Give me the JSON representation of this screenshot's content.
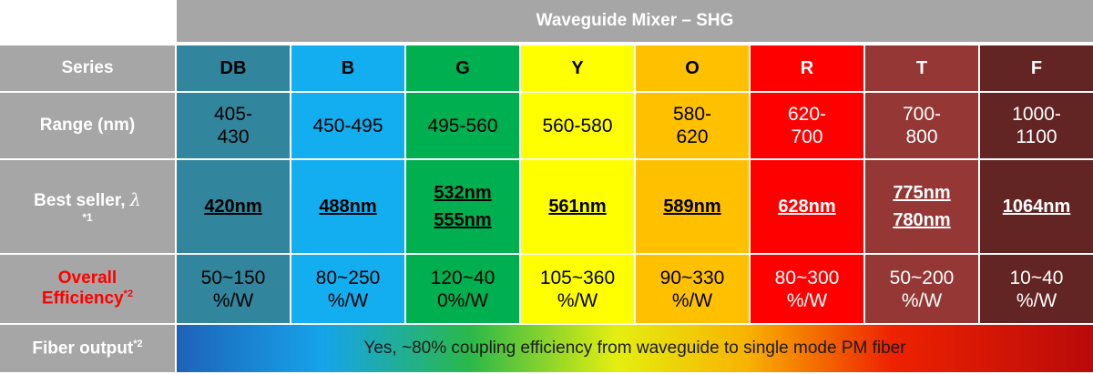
{
  "title": "Waveguide Mixer – SHG",
  "labels": {
    "series": "Series",
    "range": "Range (nm)",
    "best_seller": "Best seller,",
    "best_seller_symbol": "λ",
    "best_seller_note": "*1",
    "efficiency_line1": "Overall",
    "efficiency_line2": "Efficiency",
    "efficiency_note": "*2",
    "fiber": "Fiber output",
    "fiber_note": "*2"
  },
  "columns": [
    {
      "series": "DB",
      "range": [
        "405-",
        "430"
      ],
      "best": [
        "420nm"
      ],
      "eff": [
        "50~150",
        "%/W"
      ],
      "bg": "#31859c",
      "fg": "#000000"
    },
    {
      "series": "B",
      "range": [
        "450-495"
      ],
      "best": [
        "488nm"
      ],
      "eff": [
        "80~250",
        "%/W"
      ],
      "bg": "#13aef0",
      "fg": "#000000"
    },
    {
      "series": "G",
      "range": [
        "495-560"
      ],
      "best": [
        "532nm",
        "555nm"
      ],
      "eff": [
        "120~40",
        "0%/W"
      ],
      "bg": "#00b050",
      "fg": "#000000"
    },
    {
      "series": "Y",
      "range": [
        "560-580"
      ],
      "best": [
        "561nm"
      ],
      "eff": [
        "105~360",
        "%/W"
      ],
      "bg": "#ffff00",
      "fg": "#000000"
    },
    {
      "series": "O",
      "range": [
        "580-",
        "620"
      ],
      "best": [
        "589nm"
      ],
      "eff": [
        "90~330",
        "%/W"
      ],
      "bg": "#ffc000",
      "fg": "#000000"
    },
    {
      "series": "R",
      "range": [
        "620-",
        "700"
      ],
      "best": [
        "628nm"
      ],
      "eff": [
        "80~300",
        "%/W"
      ],
      "bg": "#ff0000",
      "fg": "#ffffff"
    },
    {
      "series": "T",
      "range": [
        "700-",
        "800"
      ],
      "best": [
        "775nm",
        "780nm"
      ],
      "eff": [
        "50~200",
        "%/W"
      ],
      "bg": "#953735",
      "fg": "#ffffff"
    },
    {
      "series": "F",
      "range": [
        "1000-",
        "1100"
      ],
      "best": [
        "1064nm"
      ],
      "eff": [
        "10~40",
        "%/W"
      ],
      "bg": "#632523",
      "fg": "#ffffff"
    }
  ],
  "fiber_text": "Yes,  ~80% coupling efficiency from waveguide to single mode PM fiber"
}
